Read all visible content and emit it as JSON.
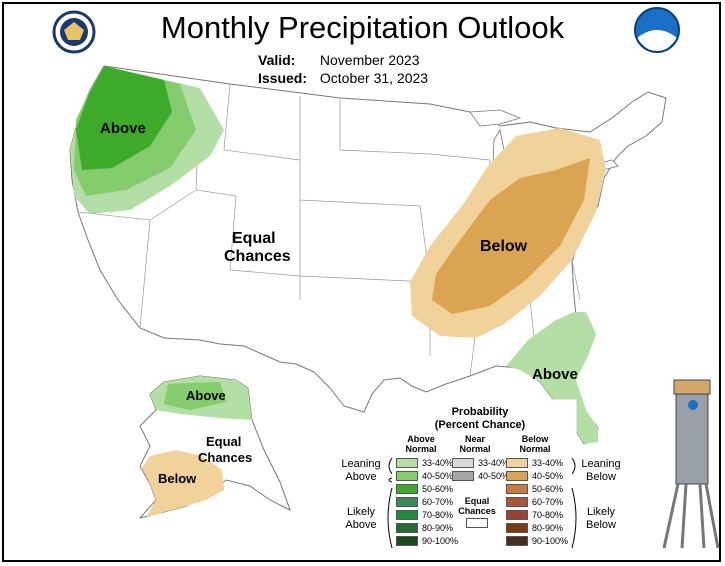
{
  "title": "Monthly Precipitation Outlook",
  "valid_label": "Valid:",
  "valid_value": "November 2023",
  "issued_label": "Issued:",
  "issued_value": "October 31, 2023",
  "logos": {
    "left": "doc-seal-icon",
    "right": "noaa-logo-icon"
  },
  "map_labels": {
    "above_nw": "Above",
    "equal_chances_conus_1": "Equal",
    "equal_chances_conus_2": "Chances",
    "below_east": "Below",
    "above_se": "Above",
    "above_ak": "Above",
    "equal_ak_1": "Equal",
    "equal_ak_2": "Chances",
    "below_ak": "Below"
  },
  "legend": {
    "title_1": "Probability",
    "title_2": "(Percent Chance)",
    "above_header_1": "Above",
    "above_header_2": "Normal",
    "near_header_1": "Near",
    "near_header_2": "Normal",
    "below_header_1": "Below",
    "below_header_2": "Normal",
    "leaning_above_1": "Leaning",
    "leaning_above_2": "Above",
    "likely_above_1": "Likely",
    "likely_above_2": "Above",
    "leaning_below_1": "Leaning",
    "leaning_below_2": "Below",
    "likely_below_1": "Likely",
    "likely_below_2": "Below",
    "equal_1": "Equal",
    "equal_2": "Chances",
    "above_rows": [
      {
        "label": "33-40%",
        "color": "#b3dfa6"
      },
      {
        "label": "40-50%",
        "color": "#84cc6e"
      },
      {
        "label": "50-60%",
        "color": "#3daa2a"
      },
      {
        "label": "60-70%",
        "color": "#3a8a5a"
      },
      {
        "label": "70-80%",
        "color": "#1e8a3a"
      },
      {
        "label": "80-90%",
        "color": "#236b33"
      },
      {
        "label": "90-100%",
        "color": "#1a4a1f"
      }
    ],
    "near_rows": [
      {
        "label": "33-40%",
        "color": "#d9d9d9"
      },
      {
        "label": "40-50%",
        "color": "#a6a6a6"
      }
    ],
    "below_rows": [
      {
        "label": "33-40%",
        "color": "#f2d29b"
      },
      {
        "label": "40-50%",
        "color": "#dba452"
      },
      {
        "label": "50-60%",
        "color": "#c97b3a"
      },
      {
        "label": "60-70%",
        "color": "#a9553a"
      },
      {
        "label": "70-80%",
        "color": "#9b4135"
      },
      {
        "label": "80-90%",
        "color": "#7a3a12"
      },
      {
        "label": "90-100%",
        "color": "#4a2a22"
      }
    ]
  },
  "gauge_image": "rain-gauge-icon"
}
